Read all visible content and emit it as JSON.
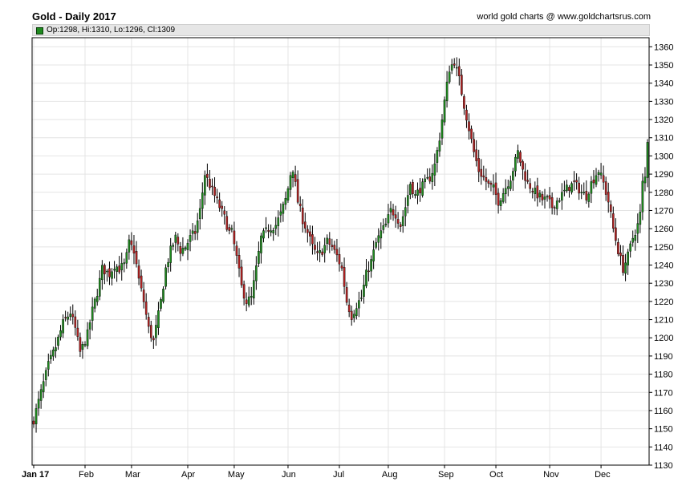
{
  "header": {
    "title": "Gold - Daily 2017",
    "source": "world gold charts @ www.goldchartsrus.com",
    "legend": "Op:1298, Hi:1310, Lo:1296, Cl:1309"
  },
  "colors": {
    "up": "#1f8a1f",
    "down": "#b22222",
    "grid": "#e4e4e4",
    "axis": "#000000"
  },
  "chart_data": {
    "type": "candlestick",
    "title": "Gold - Daily 2017",
    "ylim": [
      1130,
      1365
    ],
    "y_ticks": [
      1130,
      1140,
      1150,
      1160,
      1170,
      1180,
      1190,
      1200,
      1210,
      1220,
      1230,
      1240,
      1250,
      1260,
      1270,
      1280,
      1290,
      1300,
      1310,
      1320,
      1330,
      1340,
      1350,
      1360
    ],
    "y_axis_position": "right",
    "grid": true,
    "x_labels": [
      "Jan 17",
      "Feb",
      "Mar",
      "Apr",
      "May",
      "Jun",
      "Jul",
      "Aug",
      "Sep",
      "Oct",
      "Nov",
      "Dec"
    ],
    "x_label_trading_day": [
      0,
      21,
      40,
      63,
      82,
      104,
      125,
      145,
      168,
      189,
      211,
      232
    ],
    "trading_days": 252,
    "close_path": [
      [
        0,
        1155
      ],
      [
        3,
        1170
      ],
      [
        6,
        1185
      ],
      [
        9,
        1195
      ],
      [
        12,
        1208
      ],
      [
        15,
        1214
      ],
      [
        17,
        1205
      ],
      [
        19,
        1192
      ],
      [
        20,
        1195
      ],
      [
        22,
        1202
      ],
      [
        24,
        1215
      ],
      [
        26,
        1225
      ],
      [
        28,
        1238
      ],
      [
        31,
        1235
      ],
      [
        33,
        1240
      ],
      [
        35,
        1238
      ],
      [
        37,
        1240
      ],
      [
        38,
        1245
      ],
      [
        39,
        1252
      ],
      [
        41,
        1248
      ],
      [
        43,
        1232
      ],
      [
        45,
        1220
      ],
      [
        47,
        1205
      ],
      [
        49,
        1198
      ],
      [
        52,
        1220
      ],
      [
        54,
        1238
      ],
      [
        56,
        1248
      ],
      [
        58,
        1255
      ],
      [
        60,
        1248
      ],
      [
        62,
        1250
      ],
      [
        64,
        1255
      ],
      [
        66,
        1258
      ],
      [
        68,
        1270
      ],
      [
        70,
        1290
      ],
      [
        72,
        1284
      ],
      [
        74,
        1278
      ],
      [
        76,
        1272
      ],
      [
        78,
        1266
      ],
      [
        80,
        1258
      ],
      [
        81,
        1258
      ],
      [
        83,
        1244
      ],
      [
        85,
        1228
      ],
      [
        87,
        1220
      ],
      [
        89,
        1222
      ],
      [
        91,
        1238
      ],
      [
        93,
        1255
      ],
      [
        96,
        1260
      ],
      [
        99,
        1262
      ],
      [
        101,
        1268
      ],
      [
        103,
        1276
      ],
      [
        104,
        1282
      ],
      [
        105,
        1290
      ],
      [
        106,
        1293
      ],
      [
        108,
        1275
      ],
      [
        110,
        1265
      ],
      [
        112,
        1258
      ],
      [
        114,
        1250
      ],
      [
        116,
        1245
      ],
      [
        118,
        1248
      ],
      [
        120,
        1253
      ],
      [
        122,
        1250
      ],
      [
        124,
        1245
      ],
      [
        126,
        1238
      ],
      [
        128,
        1220
      ],
      [
        130,
        1212
      ],
      [
        132,
        1218
      ],
      [
        134,
        1222
      ],
      [
        136,
        1235
      ],
      [
        138,
        1242
      ],
      [
        140,
        1252
      ],
      [
        142,
        1258
      ],
      [
        144,
        1262
      ],
      [
        146,
        1270
      ],
      [
        148,
        1268
      ],
      [
        150,
        1262
      ],
      [
        152,
        1272
      ],
      [
        154,
        1285
      ],
      [
        156,
        1278
      ],
      [
        158,
        1282
      ],
      [
        160,
        1285
      ],
      [
        162,
        1288
      ],
      [
        164,
        1295
      ],
      [
        166,
        1310
      ],
      [
        168,
        1330
      ],
      [
        170,
        1348
      ],
      [
        172,
        1352
      ],
      [
        174,
        1342
      ],
      [
        176,
        1328
      ],
      [
        178,
        1315
      ],
      [
        180,
        1302
      ],
      [
        182,
        1292
      ],
      [
        184,
        1288
      ],
      [
        186,
        1284
      ],
      [
        188,
        1282
      ],
      [
        190,
        1275
      ],
      [
        192,
        1280
      ],
      [
        195,
        1288
      ],
      [
        198,
        1302
      ],
      [
        200,
        1292
      ],
      [
        202,
        1285
      ],
      [
        205,
        1280
      ],
      [
        208,
        1276
      ],
      [
        210,
        1276
      ],
      [
        212,
        1272
      ],
      [
        215,
        1277
      ],
      [
        218,
        1282
      ],
      [
        221,
        1285
      ],
      [
        224,
        1280
      ],
      [
        226,
        1278
      ],
      [
        228,
        1285
      ],
      [
        230,
        1290
      ],
      [
        231,
        1292
      ],
      [
        233,
        1285
      ],
      [
        235,
        1275
      ],
      [
        237,
        1260
      ],
      [
        239,
        1248
      ],
      [
        241,
        1238
      ],
      [
        243,
        1245
      ],
      [
        245,
        1255
      ],
      [
        247,
        1262
      ],
      [
        248,
        1268
      ],
      [
        249,
        1285
      ],
      [
        250,
        1288
      ],
      [
        251,
        1309
      ]
    ]
  }
}
